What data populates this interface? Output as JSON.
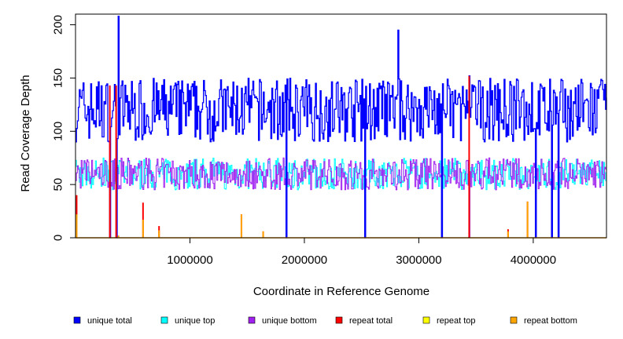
{
  "chart_data": {
    "type": "line",
    "title": "",
    "xlabel": "Coordinate in Reference Genome",
    "ylabel": "Read Coverage Depth",
    "xlim": [
      0,
      4640000
    ],
    "ylim": [
      0,
      210
    ],
    "x_ticks": [
      {
        "value": 1000000,
        "label": "1000000"
      },
      {
        "value": 2000000,
        "label": "2000000"
      },
      {
        "value": 3000000,
        "label": "3000000"
      },
      {
        "value": 4000000,
        "label": "4000000"
      }
    ],
    "y_ticks": [
      {
        "value": 0,
        "label": "0"
      },
      {
        "value": 50,
        "label": "50"
      },
      {
        "value": 100,
        "label": "100"
      },
      {
        "value": 150,
        "label": "150"
      },
      {
        "value": 200,
        "label": "200"
      }
    ],
    "grid": false,
    "legend_position": "bottom",
    "series": [
      {
        "name": "unique total",
        "color": "#0000ff"
      },
      {
        "name": "unique top",
        "color": "#00ffff"
      },
      {
        "name": "unique bottom",
        "color": "#a020f0"
      },
      {
        "name": "repeat total",
        "color": "#ff0000"
      },
      {
        "name": "repeat top",
        "color": "#ffff00"
      },
      {
        "name": "repeat bottom",
        "color": "#ffa500"
      }
    ],
    "profile": {
      "unique_total_mean": 120,
      "unique_strand_mean": 60,
      "dropouts_to_zero_x": [
        300000,
        355000,
        1840000,
        2530000,
        3200000,
        3440000,
        4020000,
        4160000,
        4220000
      ],
      "peaks": [
        {
          "x": 375000,
          "unique_total": 208
        },
        {
          "x": 2820000,
          "unique_total": 195
        },
        {
          "x": 3440000,
          "unique_total": 152
        }
      ],
      "repeat_spikes": [
        {
          "x": 10000,
          "repeat_total": 40,
          "repeat_bottom": 22
        },
        {
          "x": 300000,
          "repeat_total": 143,
          "repeat_bottom": 0
        },
        {
          "x": 355000,
          "repeat_total": 143,
          "repeat_bottom": 0
        },
        {
          "x": 375000,
          "repeat_total": 2,
          "repeat_bottom": 2
        },
        {
          "x": 590000,
          "repeat_total": 33,
          "repeat_bottom": 17
        },
        {
          "x": 730000,
          "repeat_total": 11,
          "repeat_bottom": 7
        },
        {
          "x": 1450000,
          "repeat_total": 22,
          "repeat_bottom": 22
        },
        {
          "x": 1640000,
          "repeat_total": 6,
          "repeat_bottom": 6
        },
        {
          "x": 3440000,
          "repeat_total": 152,
          "repeat_bottom": 0
        },
        {
          "x": 3780000,
          "repeat_total": 8,
          "repeat_bottom": 6
        },
        {
          "x": 3950000,
          "repeat_total": 34,
          "repeat_bottom": 34
        }
      ]
    }
  }
}
